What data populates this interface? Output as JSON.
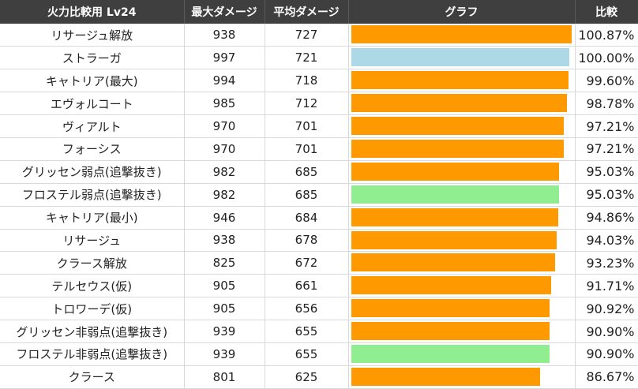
{
  "header": {
    "name": "火力比較用 Lv24",
    "max_damage": "最大ダメージ",
    "avg_damage": "平均ダメージ",
    "graph": "グラフ",
    "ratio": "比較"
  },
  "colors": {
    "default": "#ff9900",
    "baseline": "#add8e6",
    "highlight": "#90ee90"
  },
  "chart_data": {
    "type": "bar",
    "title": "",
    "xlabel": "",
    "ylabel": "",
    "orientation": "horizontal",
    "xlim": [
      0,
      101.5
    ],
    "grid": false,
    "legend": "none",
    "categories": [
      "リサージュ解放",
      "ストラーガ",
      "キャトリア(最大)",
      "エヴォルコート",
      "ヴィアルト",
      "フォーシス",
      "グリッセン弱点(追撃抜き)",
      "フロステル弱点(追撃抜き)",
      "キャトリア(最小)",
      "リサージュ",
      "クラース解放",
      "テルセウス(仮)",
      "トロワーデ(仮)",
      "グリッセン非弱点(追撃抜き)",
      "フロステル非弱点(追撃抜き)",
      "クラース"
    ],
    "values": [
      100.87,
      100.0,
      99.6,
      98.78,
      97.21,
      97.21,
      95.03,
      95.03,
      94.86,
      94.03,
      93.23,
      91.71,
      90.92,
      90.9,
      90.9,
      86.67
    ],
    "bar_colors": [
      "#ff9900",
      "#add8e6",
      "#ff9900",
      "#ff9900",
      "#ff9900",
      "#ff9900",
      "#ff9900",
      "#90ee90",
      "#ff9900",
      "#ff9900",
      "#ff9900",
      "#ff9900",
      "#ff9900",
      "#ff9900",
      "#90ee90",
      "#ff9900"
    ]
  },
  "rows": [
    {
      "name": "リサージュ解放",
      "max": "938",
      "avg": "727",
      "ratio": "100.87%"
    },
    {
      "name": "ストラーガ",
      "max": "997",
      "avg": "721",
      "ratio": "100.00%"
    },
    {
      "name": "キャトリア(最大)",
      "max": "994",
      "avg": "718",
      "ratio": "99.60%"
    },
    {
      "name": "エヴォルコート",
      "max": "985",
      "avg": "712",
      "ratio": "98.78%"
    },
    {
      "name": "ヴィアルト",
      "max": "970",
      "avg": "701",
      "ratio": "97.21%"
    },
    {
      "name": "フォーシス",
      "max": "970",
      "avg": "701",
      "ratio": "97.21%"
    },
    {
      "name": "グリッセン弱点(追撃抜き)",
      "max": "982",
      "avg": "685",
      "ratio": "95.03%"
    },
    {
      "name": "フロステル弱点(追撃抜き)",
      "max": "982",
      "avg": "685",
      "ratio": "95.03%"
    },
    {
      "name": "キャトリア(最小)",
      "max": "946",
      "avg": "684",
      "ratio": "94.86%"
    },
    {
      "name": "リサージュ",
      "max": "938",
      "avg": "678",
      "ratio": "94.03%"
    },
    {
      "name": "クラース解放",
      "max": "825",
      "avg": "672",
      "ratio": "93.23%"
    },
    {
      "name": "テルセウス(仮)",
      "max": "905",
      "avg": "661",
      "ratio": "91.71%"
    },
    {
      "name": "トロワーデ(仮)",
      "max": "905",
      "avg": "656",
      "ratio": "90.92%"
    },
    {
      "name": "グリッセン非弱点(追撃抜き)",
      "max": "939",
      "avg": "655",
      "ratio": "90.90%"
    },
    {
      "name": "フロステル非弱点(追撃抜き)",
      "max": "939",
      "avg": "655",
      "ratio": "90.90%"
    },
    {
      "name": "クラース",
      "max": "801",
      "avg": "625",
      "ratio": "86.67%"
    }
  ]
}
